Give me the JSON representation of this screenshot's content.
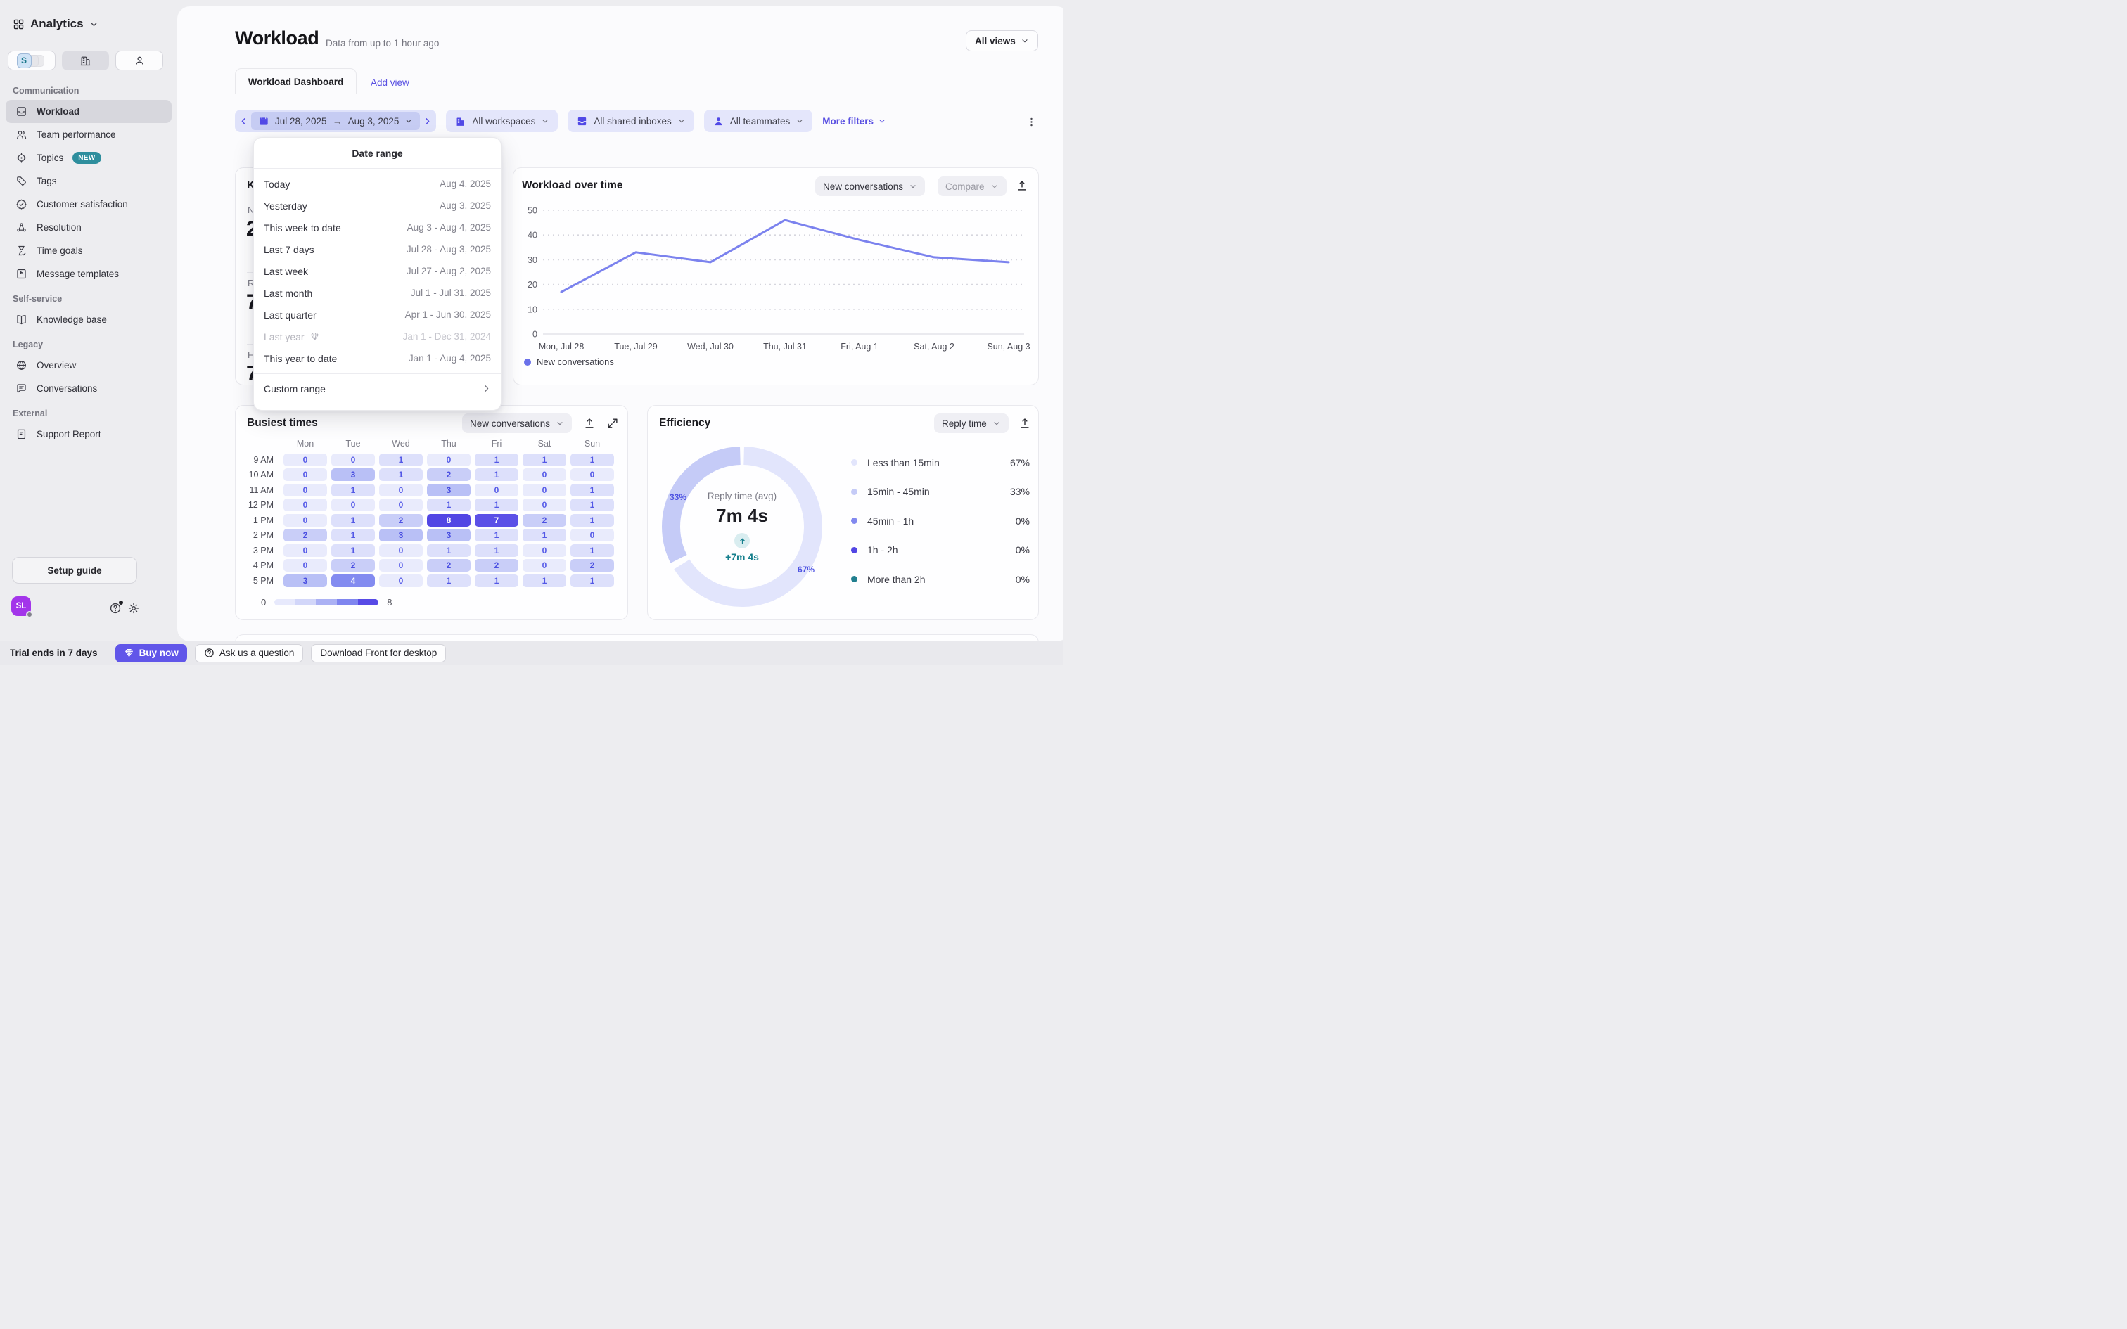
{
  "colors": {
    "accent": "#5b51e7",
    "line_series": "#7b82ee",
    "teal": "#157f8d",
    "filter_pill_bg": "#e4e6fb",
    "date_segment_bg": "#c6ccf3",
    "sidebar_selected_bg": "#d7d7dd",
    "avatar_bg": "#a335ea"
  },
  "sidebar": {
    "workspace_label": "Analytics",
    "workspace_badge_letter": "S",
    "sections": [
      {
        "label": "Communication",
        "items": [
          {
            "icon": "inbox",
            "label": "Workload",
            "selected": true
          },
          {
            "icon": "users",
            "label": "Team performance"
          },
          {
            "icon": "target",
            "label": "Topics",
            "badge": "NEW"
          },
          {
            "icon": "tag",
            "label": "Tags"
          },
          {
            "icon": "badge-check",
            "label": "Customer satisfaction"
          },
          {
            "icon": "nodes",
            "label": "Resolution"
          },
          {
            "icon": "hourglass",
            "label": "Time goals"
          },
          {
            "icon": "template",
            "label": "Message templates"
          }
        ]
      },
      {
        "label": "Self-service",
        "items": [
          {
            "icon": "book",
            "label": "Knowledge base"
          }
        ]
      },
      {
        "label": "Legacy",
        "items": [
          {
            "icon": "globe",
            "label": "Overview"
          },
          {
            "icon": "chat",
            "label": "Conversations"
          }
        ]
      },
      {
        "label": "External",
        "items": [
          {
            "icon": "doc",
            "label": "Support Report"
          }
        ]
      }
    ],
    "setup_guide_label": "Setup guide",
    "avatar_initials": "SL"
  },
  "header": {
    "title": "Workload",
    "subtitle": "Data from up to 1 hour ago",
    "views_button_label": "All views",
    "tab_active": "Workload Dashboard",
    "tab_add": "Add view"
  },
  "filters": {
    "date_start": "Jul 28, 2025",
    "date_end": "Aug 3, 2025",
    "pills": [
      {
        "icon": "building-f",
        "label": "All workspaces"
      },
      {
        "icon": "inbox-f",
        "label": "All shared inboxes"
      },
      {
        "icon": "person-f",
        "label": "All teammates"
      }
    ],
    "more_filters_label": "More filters"
  },
  "date_menu": {
    "title": "Date range",
    "options": [
      {
        "label": "Today",
        "value": "Aug 4, 2025"
      },
      {
        "label": "Yesterday",
        "value": "Aug 3, 2025"
      },
      {
        "label": "This week to date",
        "value": "Aug 3 - Aug 4, 2025"
      },
      {
        "label": "Last 7 days",
        "value": "Jul 28 - Aug 3, 2025"
      },
      {
        "label": "Last week",
        "value": "Jul 27 - Aug 2, 2025"
      },
      {
        "label": "Last month",
        "value": "Jul 1 - Jul 31, 2025"
      },
      {
        "label": "Last quarter",
        "value": "Apr 1 - Jun 30, 2025"
      },
      {
        "label": "Last year",
        "value": "Jan 1 - Dec 31, 2024",
        "disabled": true,
        "gem": true
      },
      {
        "label": "This year to date",
        "value": "Jan 1 - Aug 4, 2025"
      }
    ],
    "custom_label": "Custom range"
  },
  "kpi_sliver": {
    "title_partial": "K",
    "rows": [
      {
        "label_partial": "N",
        "value_partial": "2"
      },
      {
        "label_partial": "R",
        "value_partial": "7"
      },
      {
        "label_partial": "F",
        "value_partial": "7"
      }
    ]
  },
  "chart_data": [
    {
      "id": "workload_over_time",
      "type": "line",
      "title": "Workload over time",
      "metric_selector": "New conversations",
      "compare_selector": "Compare",
      "x": [
        "Mon, Jul 28",
        "Tue, Jul 29",
        "Wed, Jul 30",
        "Thu, Jul 31",
        "Fri, Aug 1",
        "Sat, Aug 2",
        "Sun, Aug 3"
      ],
      "series": [
        {
          "name": "New conversations",
          "values": [
            17,
            33,
            29,
            46,
            38,
            31,
            29
          ],
          "color": "#7b82ee"
        }
      ],
      "ylim": [
        0,
        50
      ],
      "yticks": [
        0,
        10,
        20,
        30,
        40,
        50
      ],
      "grid": "dotted-horizontal",
      "legend_position": "bottom-left",
      "legend_dot_color": "#6a71ea"
    },
    {
      "id": "busiest_times",
      "type": "heatmap",
      "title": "Busiest times",
      "metric_selector": "New conversations",
      "columns": [
        "Mon",
        "Tue",
        "Wed",
        "Thu",
        "Fri",
        "Sat",
        "Sun"
      ],
      "rows": [
        "9 AM",
        "10 AM",
        "11 AM",
        "12 PM",
        "1 PM",
        "2 PM",
        "3 PM",
        "4 PM",
        "5 PM"
      ],
      "values": [
        [
          0,
          0,
          1,
          0,
          1,
          1,
          1
        ],
        [
          0,
          3,
          1,
          2,
          1,
          0,
          0
        ],
        [
          0,
          1,
          0,
          3,
          0,
          0,
          1
        ],
        [
          0,
          0,
          0,
          1,
          1,
          0,
          1
        ],
        [
          0,
          1,
          2,
          8,
          7,
          2,
          1
        ],
        [
          2,
          1,
          3,
          3,
          1,
          1,
          0
        ],
        [
          0,
          1,
          0,
          1,
          1,
          0,
          1
        ],
        [
          0,
          2,
          0,
          2,
          2,
          0,
          2
        ],
        [
          3,
          4,
          0,
          1,
          1,
          1,
          1
        ]
      ],
      "scale": {
        "min": 0,
        "max": 8,
        "colors": [
          "#e7e9fc",
          "#d2d6f9",
          "#abb1f4",
          "#7f85ef",
          "#574ae6"
        ]
      },
      "cell_colors": {
        "0": {
          "bg": "#e9ebfc",
          "text": "#565be8"
        },
        "1": {
          "bg": "#dde0fb",
          "text": "#5358e6"
        },
        "2": {
          "bg": "#c9cef8",
          "text": "#4b50e2"
        },
        "3": {
          "bg": "#b9c0f6",
          "text": "#484de0"
        },
        "4": {
          "bg": "#838bf0",
          "text": "#ffffff"
        },
        "7": {
          "bg": "#5b50e7",
          "text": "#ffffff"
        },
        "8": {
          "bg": "#5246e4",
          "text": "#ffffff"
        }
      }
    },
    {
      "id": "efficiency",
      "type": "donut",
      "title": "Efficiency",
      "metric_selector": "Reply time",
      "center": {
        "label": "Reply time (avg)",
        "value": "7m 4s",
        "delta": "+7m 4s"
      },
      "slices": [
        {
          "label": "Less than 15min",
          "pct": 67,
          "color": "#e2e5fc"
        },
        {
          "label": "15min - 45min",
          "pct": 33,
          "color": "#c5cbf7"
        },
        {
          "label": "45min - 1h",
          "pct": 0,
          "color": "#8289ef"
        },
        {
          "label": "1h - 2h",
          "pct": 0,
          "color": "#5246e4"
        },
        {
          "label": "More than 2h",
          "pct": 0,
          "color": "#217f8f"
        }
      ],
      "callouts": {
        "left": "33%",
        "right": "67%"
      },
      "legend_position": "right"
    }
  ],
  "bottom_bar": {
    "trial_text": "Trial ends in 7 days",
    "buy_label": "Buy now",
    "ask_label": "Ask us a question",
    "download_label": "Download Front for desktop"
  }
}
